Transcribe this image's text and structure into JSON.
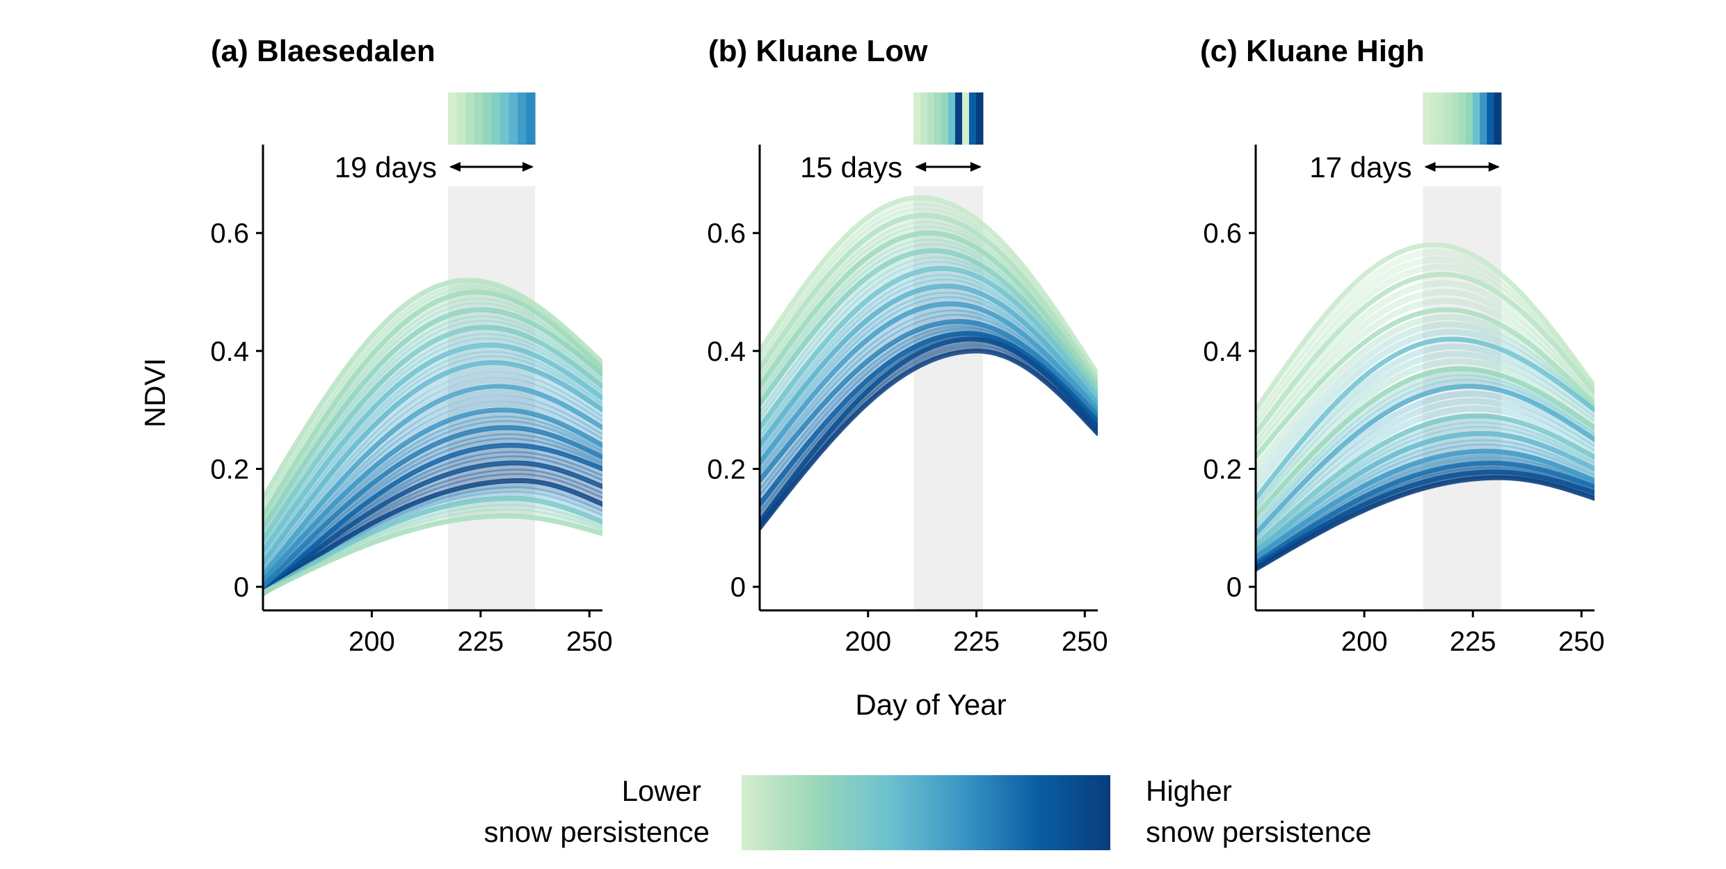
{
  "figure": {
    "x_axis_title": "Day of Year",
    "y_axis_title": "NDVI"
  },
  "legend": {
    "low_line1": "Lower",
    "low_line2": "snow persistence",
    "high_line1": "Higher",
    "high_line2": "snow persistence",
    "colors": [
      "#d4eece",
      "#9ad8b8",
      "#6cc1cf",
      "#3a96c4",
      "#0a5ea3",
      "#083d7e"
    ]
  },
  "chart_data": [
    {
      "type": "line",
      "title": "(a) Blaesedalen",
      "xlim": [
        175,
        253
      ],
      "ylim": [
        -0.04,
        0.75
      ],
      "x_ticks": [
        200,
        225,
        250
      ],
      "y_ticks": [
        0,
        0.2,
        0.4,
        0.6
      ],
      "x_tick_labels": [
        "200",
        "225",
        "250"
      ],
      "y_tick_labels": [
        "0",
        "0.2",
        "0.4",
        "0.6"
      ],
      "window": {
        "start": 217.5,
        "end": 237.5,
        "label": "19 days"
      },
      "window_strip_colors": [
        "#d4eece",
        "#c6e9c8",
        "#b5e3c1",
        "#a4ddbd",
        "#93d6bb",
        "#82cec4",
        "#70c2cf",
        "#5bb3cf",
        "#3f9dc8",
        "#2b8bc0"
      ],
      "envelope": {
        "low": 0.085,
        "high": 0.53
      },
      "series_summary": [
        {
          "peak_day": 222,
          "start": 0.15,
          "peak": 0.52,
          "end": 0.38,
          "level": 0.1
        },
        {
          "peak_day": 224,
          "start": 0.12,
          "peak": 0.5,
          "end": 0.37,
          "level": 0.18
        },
        {
          "peak_day": 225,
          "start": 0.1,
          "peak": 0.47,
          "end": 0.36,
          "level": 0.25
        },
        {
          "peak_day": 226,
          "start": 0.08,
          "peak": 0.44,
          "end": 0.34,
          "level": 0.32
        },
        {
          "peak_day": 227,
          "start": 0.06,
          "peak": 0.41,
          "end": 0.32,
          "level": 0.4
        },
        {
          "peak_day": 228,
          "start": 0.04,
          "peak": 0.38,
          "end": 0.3,
          "level": 0.45
        },
        {
          "peak_day": 229,
          "start": 0.02,
          "peak": 0.34,
          "end": 0.27,
          "level": 0.55
        },
        {
          "peak_day": 230,
          "start": 0.01,
          "peak": 0.3,
          "end": 0.24,
          "level": 0.62
        },
        {
          "peak_day": 231,
          "start": 0.0,
          "peak": 0.27,
          "end": 0.22,
          "level": 0.7
        },
        {
          "peak_day": 232,
          "start": -0.01,
          "peak": 0.24,
          "end": 0.2,
          "level": 0.8
        },
        {
          "peak_day": 233,
          "start": -0.01,
          "peak": 0.21,
          "end": 0.17,
          "level": 0.9
        },
        {
          "peak_day": 234,
          "start": -0.01,
          "peak": 0.18,
          "end": 0.14,
          "level": 0.97
        },
        {
          "peak_day": 232,
          "start": -0.01,
          "peak": 0.15,
          "end": 0.11,
          "level": 0.35
        },
        {
          "peak_day": 231,
          "start": -0.01,
          "peak": 0.12,
          "end": 0.09,
          "level": 0.15
        }
      ]
    },
    {
      "type": "line",
      "title": "(b) Kluane Low",
      "xlim": [
        175,
        253
      ],
      "ylim": [
        -0.04,
        0.75
      ],
      "x_ticks": [
        200,
        225,
        250
      ],
      "y_ticks": [
        0,
        0.2,
        0.4,
        0.6
      ],
      "x_tick_labels": [
        "200",
        "225",
        "250"
      ],
      "y_tick_labels": [
        "0",
        "0.2",
        "0.4",
        "0.6"
      ],
      "window": {
        "start": 210.5,
        "end": 226.5,
        "label": "15 days"
      },
      "window_strip_colors": [
        "#d4eece",
        "#c6e9c8",
        "#b5e3c1",
        "#a4ddbd",
        "#93d6bb",
        "#6cc1cf",
        "#083d7e",
        "#d4eece",
        "#0a5ea3",
        "#083d7e"
      ],
      "envelope": {
        "low": 0.37,
        "high": 0.67
      },
      "series_summary": [
        {
          "peak_day": 212,
          "start": 0.4,
          "peak": 0.66,
          "end": 0.36,
          "level": 0.05
        },
        {
          "peak_day": 213,
          "start": 0.37,
          "peak": 0.63,
          "end": 0.35,
          "level": 0.12
        },
        {
          "peak_day": 214,
          "start": 0.34,
          "peak": 0.6,
          "end": 0.34,
          "level": 0.2
        },
        {
          "peak_day": 215,
          "start": 0.31,
          "peak": 0.57,
          "end": 0.33,
          "level": 0.28
        },
        {
          "peak_day": 217,
          "start": 0.27,
          "peak": 0.54,
          "end": 0.32,
          "level": 0.38
        },
        {
          "peak_day": 218,
          "start": 0.24,
          "peak": 0.51,
          "end": 0.31,
          "level": 0.48
        },
        {
          "peak_day": 219,
          "start": 0.21,
          "peak": 0.48,
          "end": 0.3,
          "level": 0.58
        },
        {
          "peak_day": 221,
          "start": 0.18,
          "peak": 0.45,
          "end": 0.29,
          "level": 0.68
        },
        {
          "peak_day": 223,
          "start": 0.14,
          "peak": 0.43,
          "end": 0.28,
          "level": 0.8
        },
        {
          "peak_day": 224,
          "start": 0.11,
          "peak": 0.42,
          "end": 0.27,
          "level": 0.92
        },
        {
          "peak_day": 225,
          "start": 0.1,
          "peak": 0.4,
          "end": 0.26,
          "level": 1.0
        }
      ]
    },
    {
      "type": "line",
      "title": "(c) Kluane High",
      "xlim": [
        175,
        253
      ],
      "ylim": [
        -0.04,
        0.75
      ],
      "x_ticks": [
        200,
        225,
        250
      ],
      "y_ticks": [
        0,
        0.2,
        0.4,
        0.6
      ],
      "x_tick_labels": [
        "200",
        "225",
        "250"
      ],
      "y_tick_labels": [
        "0",
        "0.2",
        "0.4",
        "0.6"
      ],
      "window": {
        "start": 213.5,
        "end": 231.5,
        "label": "17 days"
      },
      "window_strip_colors": [
        "#d4eece",
        "#cdebca",
        "#c6e9c8",
        "#bee6c5",
        "#b5e3c1",
        "#a4ddbd",
        "#93d6bb",
        "#6cc1cf",
        "#3a96c4",
        "#0a5ea3",
        "#083d7e"
      ],
      "envelope": {
        "low": 0.15,
        "high": 0.6
      },
      "series_summary": [
        {
          "peak_day": 216,
          "start": 0.3,
          "peak": 0.58,
          "end": 0.34,
          "level": 0.05
        },
        {
          "peak_day": 218,
          "start": 0.26,
          "peak": 0.53,
          "end": 0.33,
          "level": 0.1
        },
        {
          "peak_day": 219,
          "start": 0.22,
          "peak": 0.47,
          "end": 0.31,
          "level": 0.15
        },
        {
          "peak_day": 220,
          "start": 0.15,
          "peak": 0.42,
          "end": 0.3,
          "level": 0.4
        },
        {
          "peak_day": 222,
          "start": 0.12,
          "peak": 0.37,
          "end": 0.27,
          "level": 0.22
        },
        {
          "peak_day": 224,
          "start": 0.09,
          "peak": 0.34,
          "end": 0.25,
          "level": 0.5
        },
        {
          "peak_day": 226,
          "start": 0.07,
          "peak": 0.29,
          "end": 0.22,
          "level": 0.35
        },
        {
          "peak_day": 227,
          "start": 0.06,
          "peak": 0.26,
          "end": 0.2,
          "level": 0.45
        },
        {
          "peak_day": 228,
          "start": 0.05,
          "peak": 0.23,
          "end": 0.18,
          "level": 0.6
        },
        {
          "peak_day": 229,
          "start": 0.04,
          "peak": 0.21,
          "end": 0.17,
          "level": 0.75
        },
        {
          "peak_day": 230,
          "start": 0.035,
          "peak": 0.195,
          "end": 0.16,
          "level": 0.88
        },
        {
          "peak_day": 231,
          "start": 0.03,
          "peak": 0.185,
          "end": 0.15,
          "level": 1.0
        }
      ]
    }
  ]
}
